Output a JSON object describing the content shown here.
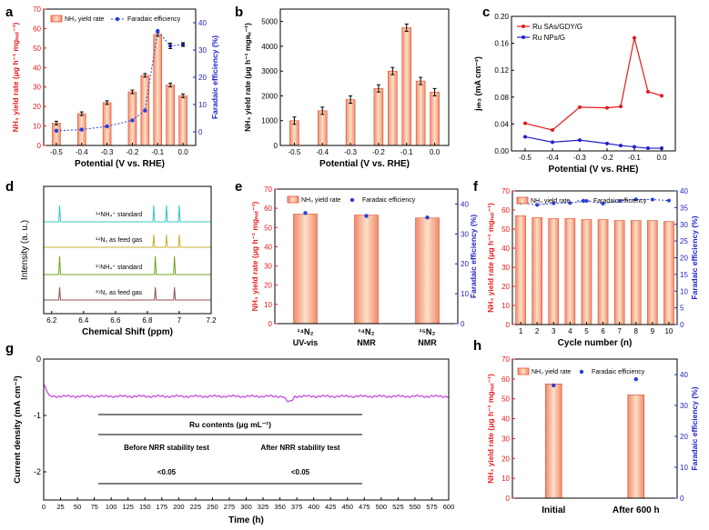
{
  "panel_letters": {
    "a": "a",
    "b": "b",
    "c": "c",
    "d": "d",
    "e": "e",
    "f": "f",
    "g": "g",
    "h": "h"
  },
  "colors": {
    "bar_top": "#f08060",
    "bar_mid": "#f8c8a8",
    "axis_red": "#e41a1c",
    "axis_blue": "#2020c8",
    "fe_blue": "#2a3fd8",
    "ru_sas": "#e41a1c",
    "ru_nps": "#2020c8",
    "trace_g": "#c040e0"
  },
  "chart_data": [
    {
      "id": "a",
      "type": "bar",
      "x": [
        -0.5,
        -0.4,
        -0.3,
        -0.2,
        -0.15,
        -0.1,
        -0.05,
        0.0
      ],
      "x_ticks": [
        "-0.5",
        "-0.4",
        "-0.3",
        "-0.2",
        "-0.1",
        "0.0"
      ],
      "x_tick_values": [
        -0.5,
        -0.4,
        -0.3,
        -0.2,
        -0.1,
        0.0
      ],
      "xlim": [
        -0.55,
        0.05
      ],
      "ylim": [
        0,
        70
      ],
      "y_ticks": [
        "0",
        "10",
        "20",
        "30",
        "40",
        "50",
        "60",
        "70"
      ],
      "y2lim": [
        -5,
        45
      ],
      "y2_ticks": [
        "0",
        "10",
        "20",
        "30",
        "40"
      ],
      "xlabel": "Potential (V vs. RHE)",
      "ylabel": "NH₃ yield rate (μg h⁻¹ mgₙₐₜ⁻¹)",
      "y2label": "Faradaic efficiency (%)",
      "legend": [
        "NH₃ yield rate",
        "Faradaic efficiency"
      ],
      "series": [
        {
          "name": "NH₃ yield rate",
          "values": [
            11.5,
            16.3,
            22.0,
            27.5,
            36.0,
            57.0,
            31.0,
            25.5
          ]
        },
        {
          "name": "Faradaic efficiency",
          "values": [
            0.4,
            0.8,
            2.0,
            4.2,
            7.8,
            37.0,
            31.5,
            32.0
          ]
        }
      ]
    },
    {
      "id": "b",
      "type": "bar",
      "x": [
        -0.5,
        -0.4,
        -0.3,
        -0.2,
        -0.15,
        -0.1,
        -0.05,
        0.0
      ],
      "x_ticks": [
        "-0.5",
        "-0.4",
        "-0.3",
        "-0.2",
        "-0.1",
        "0.0"
      ],
      "x_tick_values": [
        -0.5,
        -0.4,
        -0.3,
        -0.2,
        -0.1,
        0.0
      ],
      "xlim": [
        -0.55,
        0.05
      ],
      "ylim": [
        0,
        5500
      ],
      "y_ticks": [
        "0",
        "1000",
        "2000",
        "3000",
        "4000",
        "5000"
      ],
      "xlabel": "Potential (V vs. RHE)",
      "ylabel": "NH₃ yield rate (μg h⁻¹ mgʀᵤ⁻¹)",
      "values": [
        1000,
        1400,
        1850,
        2300,
        3000,
        4750,
        2600,
        2150
      ]
    },
    {
      "id": "c",
      "type": "line",
      "x": [
        -0.5,
        -0.4,
        -0.3,
        -0.2,
        -0.15,
        -0.1,
        -0.05,
        0.0
      ],
      "x_ticks": [
        "-0.5",
        "-0.4",
        "-0.3",
        "-0.2",
        "-0.1",
        "0.0"
      ],
      "x_tick_values": [
        -0.5,
        -0.4,
        -0.3,
        -0.2,
        -0.1,
        0.0
      ],
      "xlim": [
        -0.55,
        0.05
      ],
      "ylim": [
        0,
        0.2
      ],
      "y_ticks": [
        "0.00",
        "0.04",
        "0.08",
        "0.12",
        "0.16",
        "0.20"
      ],
      "xlabel": "Potential (V vs. RHE)",
      "ylabel": "jₙₕ₃ (mA cm⁻²)",
      "series": [
        {
          "name": "Ru SAs/GDY/G",
          "values": [
            0.041,
            0.031,
            0.065,
            0.064,
            0.066,
            0.168,
            0.088,
            0.082
          ]
        },
        {
          "name": "Ru NPs/G",
          "values": [
            0.021,
            0.013,
            0.016,
            0.011,
            0.008,
            0.006,
            0.004,
            0.004
          ]
        }
      ]
    },
    {
      "id": "d",
      "type": "line",
      "xlim": [
        6.15,
        7.2
      ],
      "x_ticks": [
        "6.2",
        "6.4",
        "6.6",
        "6.8",
        "7",
        "7.2"
      ],
      "x_tick_values": [
        6.2,
        6.4,
        6.6,
        6.8,
        7.0,
        7.2
      ],
      "xlabel": "Chemical Shift (ppm)",
      "ylabel": "Intensity (a. u.)",
      "series": [
        {
          "name": "¹⁴NH₄⁺ standard",
          "color": "#30c8c0",
          "peaks": [
            6.25,
            6.84,
            6.92,
            7.0
          ]
        },
        {
          "name": "¹⁴N₂ as feed gas",
          "color": "#c8b030",
          "peaks": [
            6.84,
            6.92,
            7.0
          ]
        },
        {
          "name": "¹⁵NH₄⁺ standard",
          "color": "#70a020",
          "peaks": [
            6.25,
            6.85,
            6.97
          ]
        },
        {
          "name": "¹⁵N₂ as feed gas",
          "color": "#905050",
          "peaks": [
            6.25,
            6.85,
            6.97
          ]
        }
      ]
    },
    {
      "id": "e",
      "type": "bar",
      "categories": [
        "¹⁴N₂|UV-vis",
        "¹⁴N₂|NMR",
        "¹⁵N₂|NMR"
      ],
      "ylim": [
        0,
        70
      ],
      "y_ticks": [
        "0",
        "10",
        "20",
        "30",
        "40",
        "50",
        "60",
        "70"
      ],
      "y2lim": [
        0,
        45
      ],
      "y2_ticks": [
        "0",
        "10",
        "20",
        "30",
        "40"
      ],
      "ylabel": "NH₃ yield rate (μg h⁻¹ mgₙₐₜ⁻¹)",
      "y2label": "Faradaic efficiency (%)",
      "legend": [
        "NH₃ yield rate",
        "Faradaic efficiency"
      ],
      "series": [
        {
          "name": "NH₃ yield rate",
          "values": [
            57,
            56.5,
            55
          ]
        },
        {
          "name": "Faradaic efficiency",
          "values": [
            37,
            36,
            35.5
          ]
        }
      ]
    },
    {
      "id": "f",
      "type": "bar",
      "categories": [
        "1",
        "2",
        "3",
        "4",
        "5",
        "6",
        "7",
        "8",
        "9",
        "10"
      ],
      "ylim": [
        0,
        70
      ],
      "y_ticks": [
        "0",
        "10",
        "20",
        "30",
        "40",
        "50",
        "60",
        "70"
      ],
      "y2lim": [
        0,
        40
      ],
      "y2_ticks": [
        "0",
        "5",
        "10",
        "15",
        "20",
        "25",
        "30",
        "35",
        "40"
      ],
      "xlabel": "Cycle number (n)",
      "ylabel": "NH₃ yield rate (μg h⁻¹ mgₙₐₜ⁻¹)",
      "y2label": "Faradaic efficiency (%)",
      "legend": [
        "NH₃ yield rate",
        "Faradaic efficiency"
      ],
      "series": [
        {
          "name": "NH₃ yield rate",
          "values": [
            57,
            56,
            55.5,
            55.5,
            55,
            55,
            54.5,
            54.5,
            54.5,
            54
          ]
        },
        {
          "name": "Faradaic efficiency",
          "values": [
            36.5,
            35.8,
            36.3,
            36.4,
            37.0,
            36.2,
            37.0,
            37.5,
            37.4,
            37.1
          ]
        }
      ]
    },
    {
      "id": "g",
      "type": "line",
      "xlim": [
        0,
        600
      ],
      "x_ticks": [
        "0",
        "25",
        "50",
        "75",
        "100",
        "125",
        "150",
        "175",
        "200",
        "225",
        "250",
        "275",
        "300",
        "325",
        "350",
        "375",
        "400",
        "425",
        "450",
        "475",
        "500",
        "525",
        "550",
        "575",
        "600"
      ],
      "ylim": [
        -2.5,
        0
      ],
      "y_ticks": [
        "0",
        "-1",
        "-2"
      ],
      "xlabel": "Time (h)",
      "ylabel": "Current density (mA cm⁻²)",
      "table": {
        "title": "Ru contents (μg mL⁻¹)",
        "headers": [
          "Before NRR stability test",
          "After NRR stability test"
        ],
        "values": [
          "<0.05",
          "<0.05"
        ]
      }
    },
    {
      "id": "h",
      "type": "bar",
      "categories": [
        "Initial",
        "After 600 h"
      ],
      "ylim": [
        0,
        70
      ],
      "y_ticks": [
        "0",
        "10",
        "20",
        "30",
        "40",
        "50",
        "60",
        "70"
      ],
      "y2lim": [
        0,
        45
      ],
      "y2_ticks": [
        "0",
        "10",
        "20",
        "30",
        "40"
      ],
      "ylabel": "NH₃ yield rate (μg h⁻¹ mgₙₐₜ⁻¹)",
      "y2label": "Faradaic efficiency (%)",
      "legend": [
        "NH₃ yield rate",
        "Faradaic efficiency"
      ],
      "series": [
        {
          "name": "NH₃ yield rate",
          "values": [
            57.5,
            52
          ]
        },
        {
          "name": "Faradaic efficiency",
          "values": [
            36.5,
            38.5
          ]
        }
      ]
    }
  ]
}
